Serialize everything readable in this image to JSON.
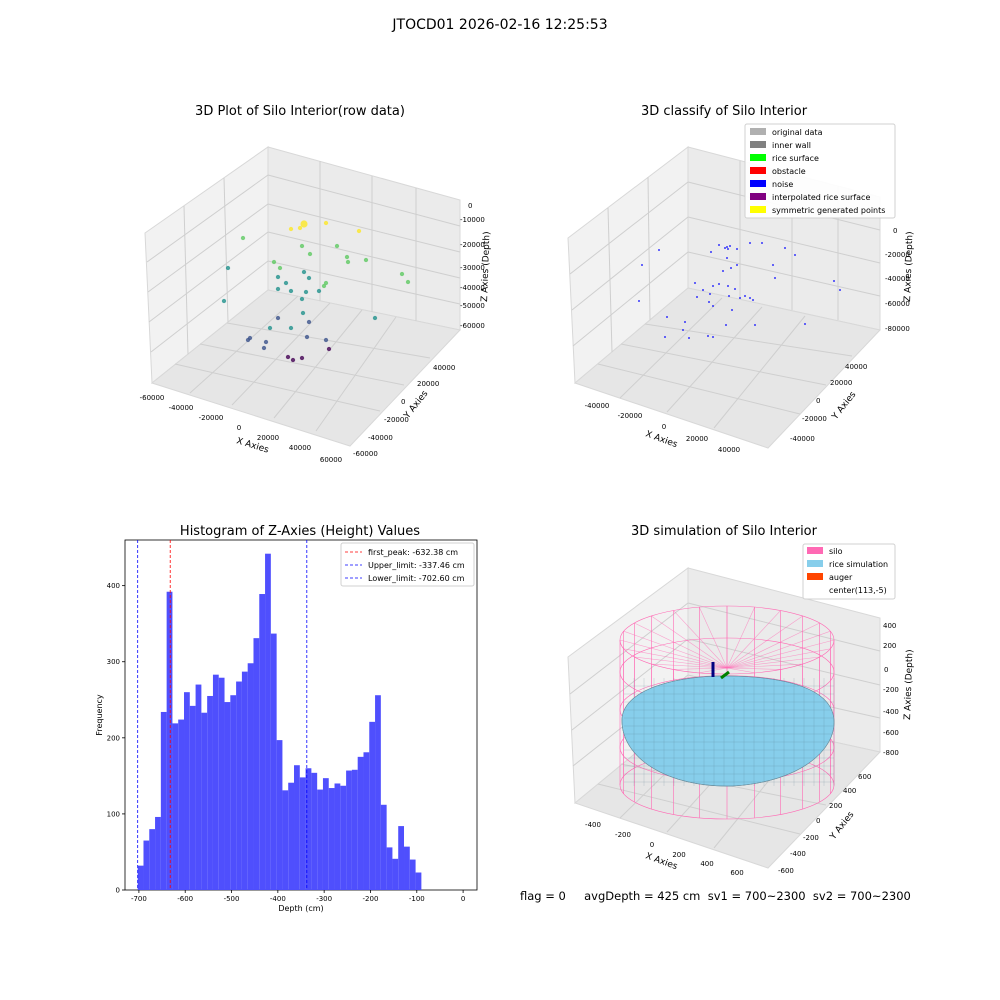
{
  "figure_title": "JTOCD01 2026-02-16 12:25:53",
  "footer": "flag = 0     avgDepth = 425 cm  sv1 = 700~2300  sv2 = 700~2300",
  "chart_data": [
    {
      "type": "scatter",
      "title": "3D Plot of Silo Interior(row data)",
      "xlabel": "X Axies",
      "ylabel": "Y Axies",
      "zlabel": "Z Axies (Depth)",
      "x_ticks": [
        "-60000",
        "-40000",
        "-20000",
        "0",
        "20000",
        "40000",
        "60000"
      ],
      "y_ticks": [
        "-60000",
        "-40000",
        "-20000",
        "0",
        "20000",
        "40000"
      ],
      "z_ticks": [
        "0",
        "-10000",
        "-20000",
        "-30000",
        "-40000",
        "-50000",
        "-60000"
      ],
      "colormap": [
        "#440154",
        "#3b528b",
        "#21918c",
        "#5ec962",
        "#fde725"
      ],
      "note": "3D scatter points colored by depth"
    },
    {
      "type": "scatter",
      "title": "3D classify of Silo Interior",
      "xlabel": "X Axies",
      "ylabel": "Y Axies",
      "zlabel": "Z Axies (Depth)",
      "x_ticks": [
        "-40000",
        "-20000",
        "0",
        "20000",
        "40000"
      ],
      "y_ticks": [
        "-40000",
        "-20000",
        "0",
        "20000",
        "40000"
      ],
      "z_ticks": [
        "0",
        "-20000",
        "-40000",
        "-60000",
        "-80000"
      ],
      "legend": [
        {
          "label": "original data",
          "color": "#b0b0b0"
        },
        {
          "label": "inner wall",
          "color": "#808080"
        },
        {
          "label": "rice surface",
          "color": "#00ff00"
        },
        {
          "label": "obstacle",
          "color": "#ff0000"
        },
        {
          "label": "noise",
          "color": "#0000ff"
        },
        {
          "label": "interpolated rice surface",
          "color": "#800080"
        },
        {
          "label": "symmetric generated points",
          "color": "#ffff00"
        }
      ],
      "legend_loc": "top-right"
    },
    {
      "type": "bar",
      "title": "Histogram of Z-Axies (Height) Values",
      "xlabel": "Depth (cm)",
      "ylabel": "Frequency",
      "xlim": [
        -730,
        30
      ],
      "ylim": [
        0,
        460
      ],
      "x_ticks": [
        -700,
        -600,
        -500,
        -400,
        -300,
        -200,
        -100,
        0
      ],
      "y_ticks": [
        0,
        100,
        200,
        300,
        400
      ],
      "bin_start": -702.6,
      "bin_width": 12.5,
      "values": [
        32,
        65,
        80,
        96,
        234,
        392,
        219,
        224,
        260,
        242,
        270,
        233,
        255,
        283,
        279,
        247,
        256,
        274,
        287,
        298,
        331,
        389,
        442,
        337,
        197,
        131,
        141,
        164,
        148,
        160,
        154,
        132,
        147,
        134,
        140,
        137,
        157,
        158,
        175,
        181,
        221,
        256,
        112,
        56,
        41,
        84,
        57,
        40,
        23
      ],
      "bar_color": "#4b4bfd",
      "lines": [
        {
          "label": "first_peak: -632.38 cm",
          "x": -632.38,
          "color": "#ff0000"
        },
        {
          "label": "Upper_limit: -337.46 cm",
          "x": -337.46,
          "color": "#0000ff"
        },
        {
          "label": "Lower_limit: -702.60 cm",
          "x": -702.6,
          "color": "#0000ff"
        }
      ],
      "legend_loc": "top-right"
    },
    {
      "type": "other",
      "title": "3D simulation of Silo Interior",
      "xlabel": "X Axies",
      "ylabel": "Y Axies",
      "zlabel": "Z Axies (Depth)",
      "x_ticks": [
        "-400",
        "-200",
        "0",
        "200",
        "400",
        "600"
      ],
      "y_ticks": [
        "-600",
        "-400",
        "-200",
        "0",
        "200",
        "400",
        "600"
      ],
      "z_ticks": [
        "400",
        "200",
        "0",
        "-200",
        "-400",
        "-600",
        "-800"
      ],
      "legend": [
        {
          "label": "silo",
          "color": "#ff69b4"
        },
        {
          "label": "rice simulation",
          "color": "#87ceeb"
        },
        {
          "label": "auger",
          "color": "#ff4500"
        },
        {
          "label": "center(113,-5)",
          "color": ""
        }
      ],
      "legend_loc": "top-right"
    }
  ]
}
